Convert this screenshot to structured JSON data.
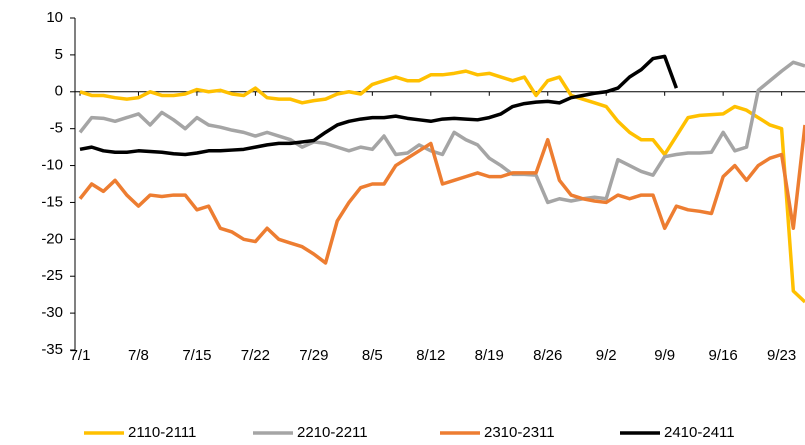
{
  "chart_data": {
    "type": "line",
    "categories": [
      "7/1",
      null,
      null,
      null,
      null,
      "7/8",
      null,
      null,
      null,
      null,
      "7/15",
      null,
      null,
      null,
      null,
      "7/22",
      null,
      null,
      null,
      null,
      "7/29",
      null,
      null,
      null,
      null,
      "8/5",
      null,
      null,
      null,
      null,
      "8/12",
      null,
      null,
      null,
      null,
      "8/19",
      null,
      null,
      null,
      null,
      "8/26",
      null,
      null,
      null,
      null,
      "9/2",
      null,
      null,
      null,
      null,
      "9/9",
      null,
      null,
      null,
      null,
      "9/16",
      null,
      null,
      null,
      null,
      "9/23",
      null,
      null
    ],
    "ylim": [
      -35,
      10
    ],
    "yticks": [
      10,
      5,
      0,
      -5,
      -10,
      -15,
      -20,
      -25,
      -30,
      -35
    ],
    "grid": false,
    "legend": "bottom",
    "series": [
      {
        "name": "2110-2111",
        "color": "#FFC000",
        "values": [
          0,
          -0.5,
          -0.5,
          -0.8,
          -1,
          -0.8,
          0,
          -0.5,
          -0.5,
          -0.3,
          0.3,
          0,
          0.2,
          -0.3,
          -0.5,
          0.5,
          -0.8,
          -1,
          -1,
          -1.5,
          -1.2,
          -1,
          -0.3,
          0,
          -0.3,
          1,
          1.5,
          2,
          1.5,
          1.5,
          2.3,
          2.3,
          2.5,
          2.8,
          2.3,
          2.5,
          2,
          1.5,
          2,
          -0.5,
          1.5,
          2,
          -0.5,
          -1,
          -1.5,
          -2,
          -4,
          -5.5,
          -6.5,
          -6.5,
          -8.5,
          -6,
          -3.5,
          -3.2,
          -3.1,
          -3,
          -2,
          -2.5,
          -3.5,
          -4.5,
          -5,
          -27,
          -28.5
        ]
      },
      {
        "name": "2210-2211",
        "color": "#A5A5A5",
        "values": [
          -5.5,
          -3.5,
          -3.6,
          -4,
          -3.5,
          -3,
          -4.5,
          -2.8,
          -3.8,
          -5,
          -3.5,
          -4.5,
          -4.8,
          -5.2,
          -5.5,
          -6,
          -5.5,
          -6,
          -6.5,
          -7.5,
          -6.8,
          -7,
          -7.5,
          -8,
          -7.5,
          -7.8,
          -6,
          -8.5,
          -8.3,
          -7.2,
          -8,
          -8.5,
          -5.5,
          -6.5,
          -7.2,
          -9,
          -10,
          -11.2,
          -11.2,
          -11.3,
          -15,
          -14.5,
          -14.8,
          -14.5,
          -14.3,
          -14.5,
          -9.2,
          -10,
          -10.8,
          -11.3,
          -8.8,
          -8.5,
          -8.3,
          -8.3,
          -8.2,
          -5.5,
          -8,
          -7.5,
          0.2,
          1.5,
          2.8,
          4,
          3.5
        ]
      },
      {
        "name": "2310-2311",
        "color": "#ED7D31",
        "values": [
          -14.5,
          -12.5,
          -13.5,
          -12,
          -14,
          -15.5,
          -14,
          -14.2,
          -14,
          -14,
          -16,
          -15.5,
          -18.5,
          -19,
          -20,
          -20.3,
          -18.5,
          -20,
          -20.5,
          -21,
          -22,
          -23.2,
          -17.5,
          -15,
          -13,
          -12.5,
          -12.5,
          -10,
          -9,
          -8,
          -7,
          -12.5,
          -12,
          -11.5,
          -11,
          -11.5,
          -11.5,
          -11,
          -11,
          -11,
          -6.5,
          -12,
          -14,
          -14.5,
          -14.8,
          -15,
          -14,
          -14.5,
          -14,
          -14,
          -18.5,
          -15.5,
          -16,
          -16.2,
          -16.5,
          -11.5,
          -10,
          -12,
          -10,
          -9,
          -8.5,
          -18.5,
          -4.5
        ]
      },
      {
        "name": "2410-2411",
        "color": "#000000",
        "values": [
          -7.8,
          -7.5,
          -8,
          -8.2,
          -8.2,
          -8,
          -8.1,
          -8.2,
          -8.4,
          -8.5,
          -8.3,
          -8,
          -8,
          -7.9,
          -7.8,
          -7.5,
          -7.2,
          -7,
          -7,
          -6.8,
          -6.6,
          -5.5,
          -4.5,
          -4,
          -3.7,
          -3.5,
          -3.5,
          -3.3,
          -3.6,
          -3.8,
          -4,
          -3.7,
          -3.6,
          -3.7,
          -3.8,
          -3.5,
          -3,
          -2,
          -1.6,
          -1.4,
          -1.3,
          -1.5,
          -0.8,
          -0.5,
          -0.2,
          0,
          0.5,
          2,
          3,
          4.5,
          4.8,
          0.5,
          null,
          null,
          null,
          null,
          null,
          null,
          null,
          null,
          null,
          null,
          null
        ]
      }
    ]
  }
}
